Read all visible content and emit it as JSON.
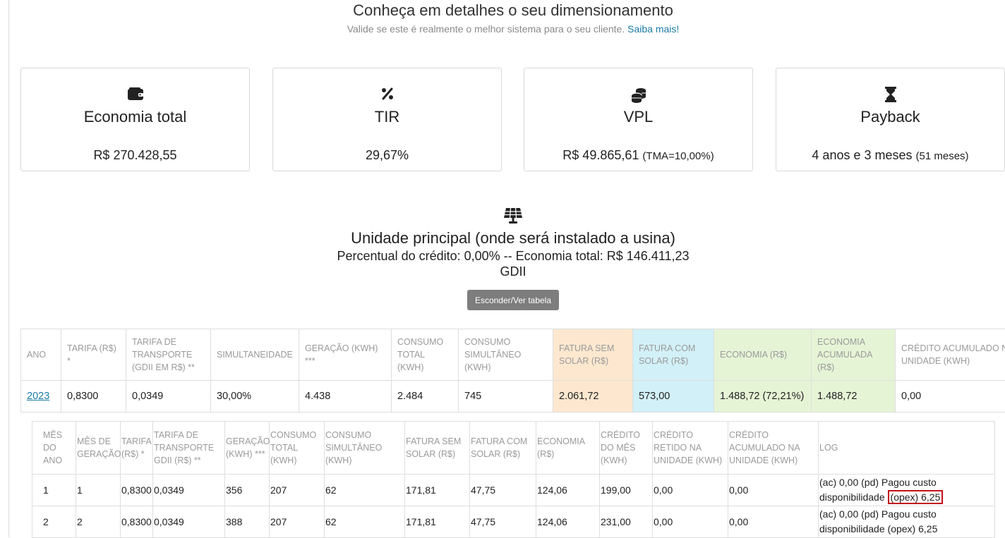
{
  "header": {
    "title": "Conheça em detalhes o seu dimensionamento",
    "subtitle": "Valide se este é realmente o melhor sistema para o seu cliente.",
    "link": "Saiba mais!"
  },
  "cards": [
    {
      "icon": "wallet-icon",
      "title": "Economia total",
      "value": "R$ 270.428,55",
      "small": ""
    },
    {
      "icon": "percent-icon",
      "title": "TIR",
      "value": "29,67%",
      "small": ""
    },
    {
      "icon": "coins-icon",
      "title": "VPL",
      "value": "R$ 49.865,61",
      "small": "(TMA=10,00%)"
    },
    {
      "icon": "hourglass-icon",
      "title": "Payback",
      "value": "4 anos e 3 meses",
      "small": "(51 meses)"
    }
  ],
  "unit": {
    "icon": "solar-panel-icon",
    "title": "Unidade principal (onde será instalado a usina)",
    "credit_line": "Percentual do crédito: 0,00% -- Economia total: R$ 146.411,23",
    "type": "GDII",
    "toggle_button": "Esconder/Ver tabela"
  },
  "year_table": {
    "headers": [
      "ANO",
      "TARIFA (R$) *",
      "TARIFA DE TRANSPORTE (GDII EM R$) **",
      "SIMULTANEIDADE",
      "GERAÇÃO (KWH) ***",
      "CONSUMO TOTAL (KWH)",
      "CONSUMO SIMULTÂNEO (KWH)",
      "FATURA SEM SOLAR (R$)",
      "FATURA COM SOLAR (R$)",
      "ECONOMIA (R$)",
      "ECONOMIA ACUMULADA (R$)",
      "CRÉDITO ACUMULADO NA UNIDADE (KWH)"
    ],
    "row": [
      "2023",
      "0,8300",
      "0,0349",
      "30,00%",
      "4.438",
      "2.484",
      "745",
      "2.061,72",
      "573,00",
      "1.488,72 (72,21%)",
      "1.488,72",
      "0,00"
    ]
  },
  "month_table": {
    "headers": [
      "MÊS DO ANO",
      "MÊS DE GERAÇÃO",
      "TARIFA (R$) *",
      "TARIFA DE TRANSPORTE GDII (R$) **",
      "GERAÇÃO (KWH) ***",
      "CONSUMO TOTAL (KWH)",
      "CONSUMO SIMULTÂNEO (KWH)",
      "FATURA SEM SOLAR (R$)",
      "FATURA COM SOLAR (R$)",
      "ECONOMIA (R$)",
      "CRÉDITO DO MÊS (KWH)",
      "CRÉDITO RETIDO NA UNIDADE (KWH)",
      "CRÉDITO ACUMULADO NA UNIDADE (KWH)",
      "LOG"
    ],
    "rows": [
      {
        "cells": [
          "1",
          "1",
          "0,8300",
          "0,0349",
          "356",
          "207",
          "62",
          "171,81",
          "47,75",
          "124,06",
          "199,00",
          "0,00",
          "0,00"
        ],
        "log_a": "(ac) 0,00 (pd) Pagou custo disponibilidade",
        "log_b": "(opex) 6,25"
      },
      {
        "cells": [
          "2",
          "2",
          "0,8300",
          "0,0349",
          "388",
          "207",
          "62",
          "171,81",
          "47,75",
          "124,06",
          "231,00",
          "0,00",
          "0,00"
        ],
        "log_a": "(ac) 0,00 (pd) Pagou custo disponibilidade",
        "log_b": "(opex) 6,25"
      }
    ]
  }
}
